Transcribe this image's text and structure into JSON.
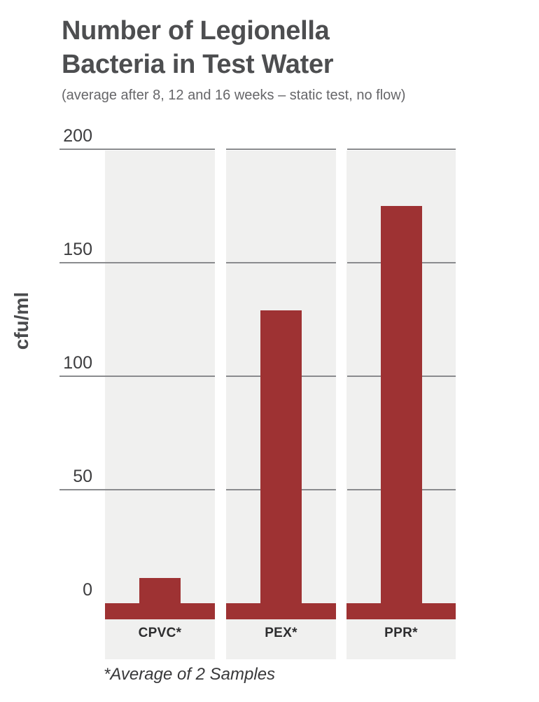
{
  "header": {
    "title_line1": "Number of Legionella",
    "title_line2": "Bacteria in Test Water",
    "subtitle": "(average after 8, 12 and 16 weeks – static test, no flow)"
  },
  "chart_data": {
    "type": "bar",
    "title": "Number of Legionella Bacteria in Test Water",
    "title_lines": [
      "Number of Legionella",
      "Bacteria in Test Water"
    ],
    "subtitle": "(average after 8, 12 and 16 weeks – static test, no flow)",
    "ylabel": "cfu/ml",
    "xlabel": "",
    "categories": [
      "CPVC*",
      "PEX*",
      "PPR*"
    ],
    "values": [
      11,
      129,
      175
    ],
    "yticks": [
      0,
      50,
      100,
      150,
      200
    ],
    "ylim": [
      0,
      200
    ],
    "grid": true,
    "legend": false,
    "bar_color": "#9e3233",
    "band_color": "#f0f0ef",
    "gridline_color": "#8a8b8e",
    "baseline_strip": true
  },
  "footer": {
    "footnote": "*Average of 2 Samples"
  }
}
